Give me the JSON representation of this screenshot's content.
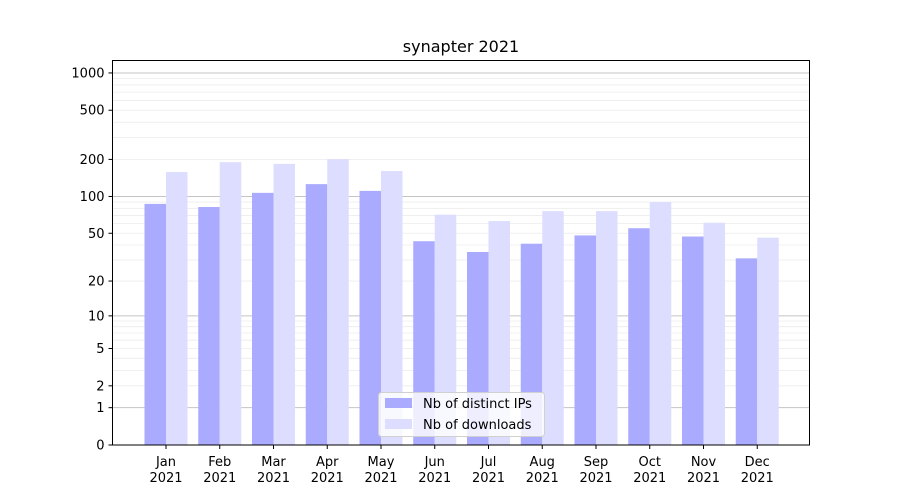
{
  "chart_data": {
    "type": "bar",
    "title": "synapter 2021",
    "xlabel": "",
    "ylabel": "",
    "yscale": "log(1+y)",
    "ylim": [
      0,
      1300
    ],
    "yticks": [
      0,
      1,
      2,
      5,
      10,
      20,
      50,
      100,
      200,
      500,
      1000
    ],
    "ytick_labels": [
      "0",
      "1",
      "2",
      "5",
      "10",
      "20",
      "50",
      "100",
      "200",
      "500",
      "1000"
    ],
    "grid": true,
    "categories": [
      "Jan\n2021",
      "Feb\n2021",
      "Mar\n2021",
      "Apr\n2021",
      "May\n2021",
      "Jun\n2021",
      "Jul\n2021",
      "Aug\n2021",
      "Sep\n2021",
      "Oct\n2021",
      "Nov\n2021",
      "Dec\n2021"
    ],
    "series": [
      {
        "name": "Nb of distinct IPs",
        "color": "#aaaaff",
        "values": [
          87,
          82,
          107,
          126,
          111,
          43,
          35,
          41,
          48,
          55,
          47,
          31
        ]
      },
      {
        "name": "Nb of downloads",
        "color": "#ddddff",
        "values": [
          158,
          190,
          184,
          201,
          161,
          71,
          63,
          76,
          76,
          90,
          61,
          46
        ]
      }
    ],
    "legend_position": "bottom-center"
  }
}
